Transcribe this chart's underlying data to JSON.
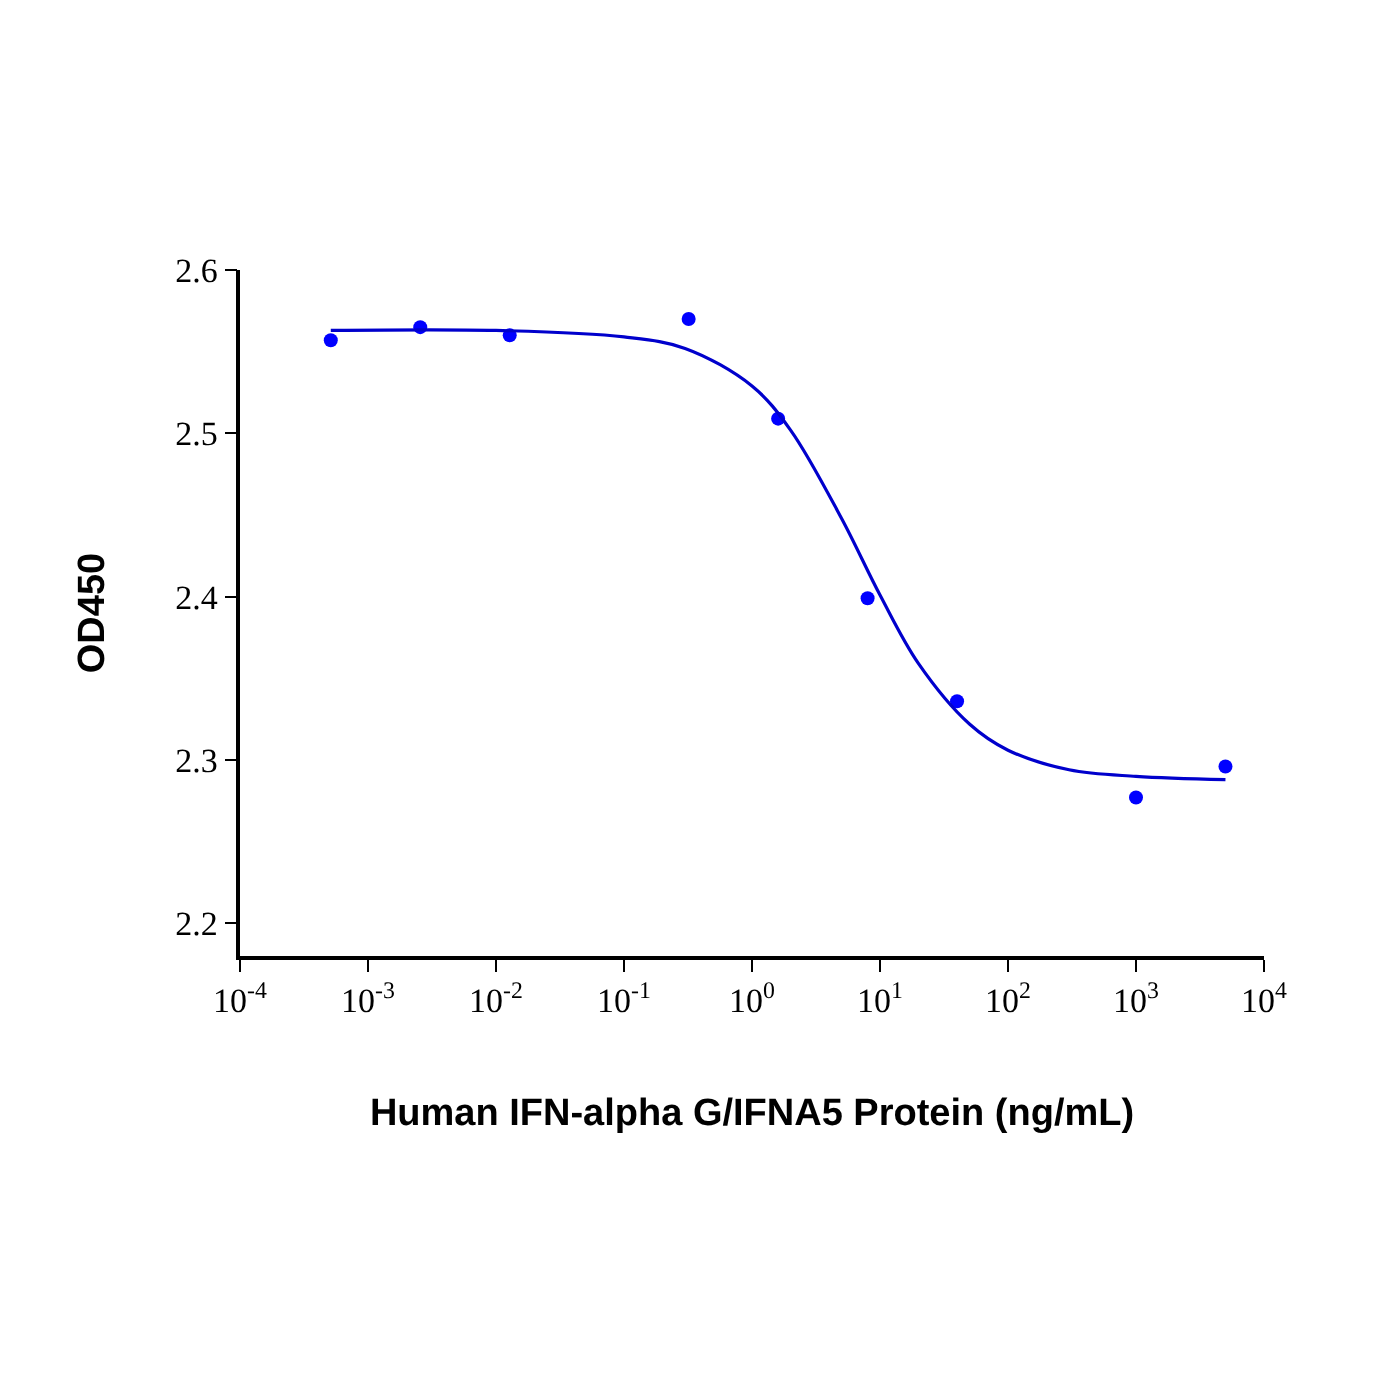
{
  "chart_data": {
    "type": "scatter",
    "xlabel": "Human IFN-alpha G/IFNA5 Protein (ng/mL)",
    "ylabel": "OD450",
    "log": "x",
    "grid": false,
    "legend": false,
    "xlim": [
      0.0001,
      10000
    ],
    "xticks": [
      {
        "value": 0.0001,
        "label": "10$^{-4}$"
      },
      {
        "value": 0.001,
        "label": "10$^{-3}$"
      },
      {
        "value": 0.01,
        "label": "10$^{-2}$"
      },
      {
        "value": 0.1,
        "label": "10$^{-1}$"
      },
      {
        "value": 1,
        "label": "10$^{0}$"
      },
      {
        "value": 10,
        "label": "10$^{1}$"
      },
      {
        "value": 100,
        "label": "10$^{2}$"
      },
      {
        "value": 1000,
        "label": "10$^{3}$"
      },
      {
        "value": 10000,
        "label": "10$^{4}$"
      }
    ],
    "ylim": [
      2.18,
      2.6
    ],
    "yticks": [
      2.2,
      2.3,
      2.4,
      2.5,
      2.6
    ],
    "series": [
      {
        "marker": "circle",
        "color": "#0000ff",
        "x": [
          0.000512,
          0.00256,
          0.0128,
          0.32,
          1.6,
          8,
          40,
          1000,
          5000
        ],
        "values": [
          2.557,
          2.565,
          2.56,
          2.57,
          2.509,
          2.399,
          2.336,
          2.277,
          2.296
        ]
      },
      {
        "type": "line",
        "marker": "none",
        "color": "#0000cc",
        "line_style": "solid",
        "x": [
          0.000512,
          0.01,
          0.1,
          0.3,
          1,
          2,
          5,
          10,
          20,
          50,
          100,
          300,
          1000,
          5000
        ],
        "values": [
          2.563,
          2.563,
          2.559,
          2.552,
          2.529,
          2.502,
          2.448,
          2.401,
          2.359,
          2.322,
          2.306,
          2.294,
          2.29,
          2.288
        ]
      }
    ]
  }
}
